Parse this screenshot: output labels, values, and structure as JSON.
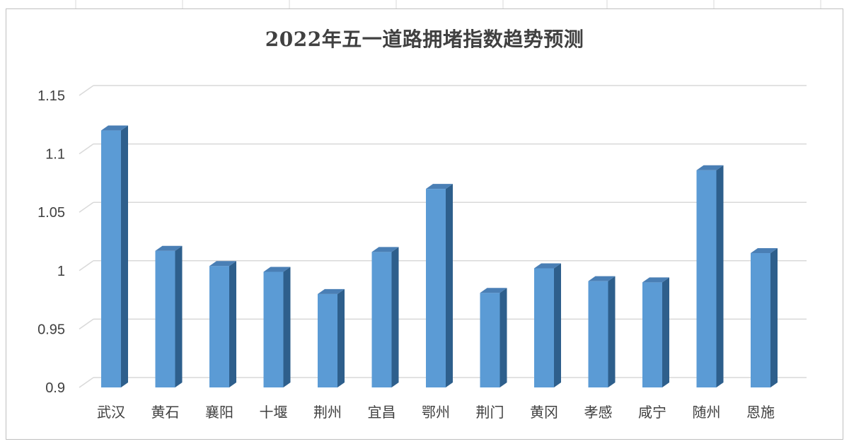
{
  "chart_data": {
    "type": "bar",
    "title": "2022年五一道路拥堵指数趋势预测",
    "xlabel": "",
    "ylabel": "",
    "categories": [
      "武汉",
      "黄石",
      "襄阳",
      "十堰",
      "荆州",
      "宜昌",
      "鄂州",
      "荆门",
      "黄冈",
      "孝感",
      "咸宁",
      "随州",
      "恩施"
    ],
    "values": [
      1.12,
      1.017,
      1.004,
      0.999,
      0.98,
      1.016,
      1.07,
      0.981,
      1.002,
      0.991,
      0.99,
      1.086,
      1.015
    ],
    "ylim": [
      0.9,
      1.15
    ],
    "yticks": [
      0.9,
      0.95,
      1,
      1.05,
      1.1,
      1.15
    ],
    "ytick_labels": [
      "0.9",
      "0.95",
      "1",
      "1.05",
      "1.1",
      "1.15"
    ],
    "grid": true,
    "bar_color": "#5b9bd5",
    "bar_side_color": "#2e5f8c",
    "bar_top_color": "#4a7fb5",
    "style": "3d-column"
  }
}
